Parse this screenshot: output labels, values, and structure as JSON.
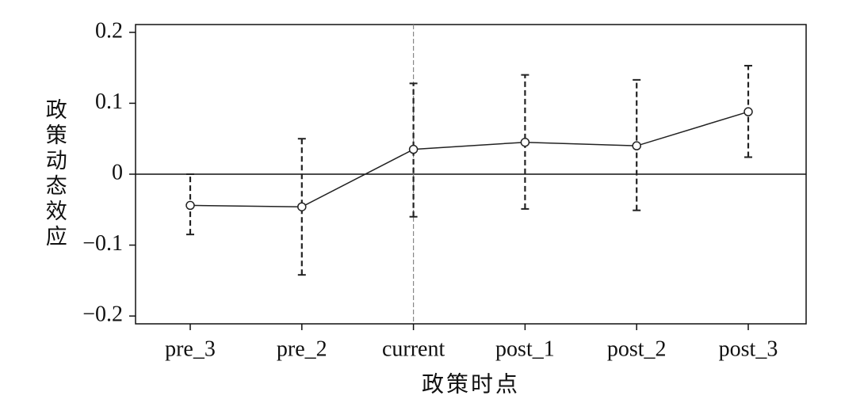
{
  "chart_data": {
    "type": "errorbar-line",
    "x_label": "政策时点",
    "y_label": "政策动态效应",
    "categories": [
      "pre_3",
      "pre_2",
      "current",
      "post_1",
      "post_2",
      "post_3"
    ],
    "series": [
      {
        "color": "#222222",
        "values": [
          -0.044,
          -0.046,
          0.035,
          0.045,
          0.04,
          0.088
        ],
        "lower": [
          -0.085,
          -0.142,
          -0.06,
          -0.049,
          -0.051,
          0.024
        ],
        "upper": [
          0.0,
          0.05,
          0.128,
          0.14,
          0.133,
          0.153
        ]
      }
    ],
    "ylim": [
      -0.211,
      0.211
    ],
    "yticks": [
      {
        "value": -0.2,
        "label": "−0.2"
      },
      {
        "value": -0.1,
        "label": "−0.1"
      },
      0,
      0.1,
      0.2
    ],
    "reference_lines": {
      "y": 0,
      "x": "current"
    }
  }
}
